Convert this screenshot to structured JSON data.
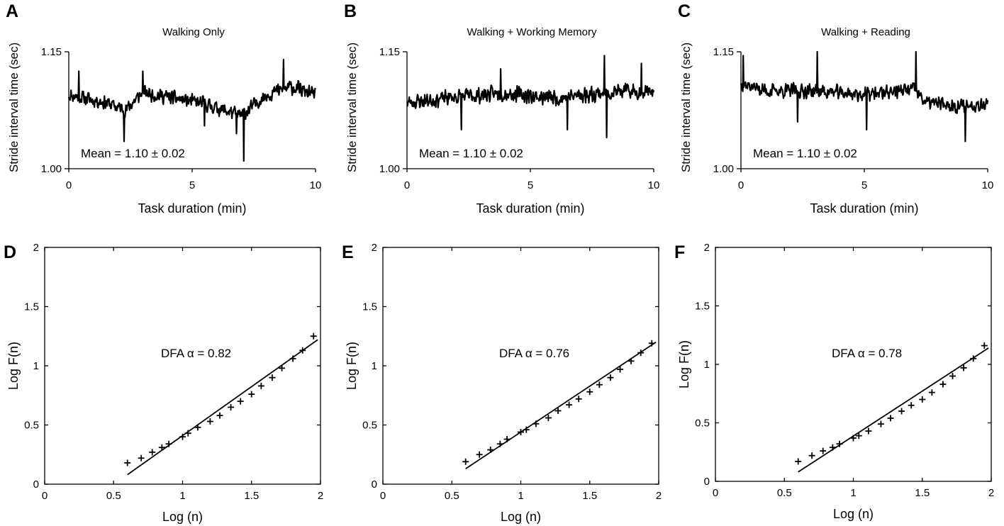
{
  "chart_data": [
    {
      "panel": "A",
      "type": "line",
      "title": "Walking Only",
      "xlabel": "Task duration (min)",
      "ylabel": "Stride interval time (sec)",
      "xlim": [
        0,
        10
      ],
      "ylim": [
        1.0,
        1.15
      ],
      "xticks": [
        "0",
        "5",
        "10"
      ],
      "yticks": [
        "1.00",
        "1.15"
      ],
      "annotation": "Mean = 1.10 ± 0.02",
      "seed": 11,
      "profile": [
        [
          0,
          1.095
        ],
        [
          1.5,
          1.085
        ],
        [
          2.3,
          1.075
        ],
        [
          3,
          1.098
        ],
        [
          4,
          1.092
        ],
        [
          5.5,
          1.083
        ],
        [
          7,
          1.068
        ],
        [
          8,
          1.095
        ],
        [
          9,
          1.105
        ],
        [
          10,
          1.095
        ]
      ],
      "noise": 0.011,
      "spikes": [
        [
          0.4,
          1.125
        ],
        [
          2.25,
          1.035
        ],
        [
          3,
          1.125
        ],
        [
          5.5,
          1.055
        ],
        [
          6.8,
          1.045
        ],
        [
          7.1,
          1.01
        ],
        [
          8.7,
          1.14
        ]
      ]
    },
    {
      "panel": "B",
      "type": "line",
      "title": "Walking + Working Memory",
      "xlabel": "Task duration (min)",
      "ylabel": "Stride interval time (sec)",
      "xlim": [
        0,
        10
      ],
      "ylim": [
        1.0,
        1.15
      ],
      "xticks": [
        "0",
        "5",
        "10"
      ],
      "yticks": [
        "1.00",
        "1.15"
      ],
      "annotation": "Mean = 1.10 ± 0.02",
      "seed": 23,
      "profile": [
        [
          0,
          1.085
        ],
        [
          2,
          1.092
        ],
        [
          4,
          1.097
        ],
        [
          6,
          1.09
        ],
        [
          8,
          1.098
        ],
        [
          10,
          1.1
        ]
      ],
      "noise": 0.012,
      "spikes": [
        [
          2.2,
          1.05
        ],
        [
          3.8,
          1.128
        ],
        [
          6.5,
          1.05
        ],
        [
          8,
          1.145
        ],
        [
          8.1,
          1.04
        ],
        [
          9.5,
          1.135
        ]
      ]
    },
    {
      "panel": "C",
      "type": "line",
      "title": "Walking + Reading",
      "xlabel": "Task duration (min)",
      "ylabel": "Stride interval time (sec)",
      "xlim": [
        0,
        10
      ],
      "ylim": [
        1.0,
        1.15
      ],
      "xticks": [
        "0",
        "5",
        "10"
      ],
      "yticks": [
        "1.00",
        "1.15"
      ],
      "annotation": "Mean = 1.10 ± 0.02",
      "seed": 37,
      "profile": [
        [
          0,
          1.11
        ],
        [
          1,
          1.1
        ],
        [
          3,
          1.1
        ],
        [
          5,
          1.095
        ],
        [
          7,
          1.102
        ],
        [
          7.5,
          1.085
        ],
        [
          9,
          1.08
        ],
        [
          10,
          1.085
        ]
      ],
      "noise": 0.011,
      "spikes": [
        [
          0.1,
          1.145
        ],
        [
          2.3,
          1.06
        ],
        [
          3.1,
          1.15
        ],
        [
          5.1,
          1.05
        ],
        [
          7.1,
          1.15
        ],
        [
          9.1,
          1.035
        ]
      ]
    },
    {
      "panel": "D",
      "type": "scatter",
      "xlabel": "Log (n)",
      "ylabel": "Log F(n)",
      "xlim": [
        0,
        2
      ],
      "ylim": [
        0,
        2
      ],
      "xticks": [
        "0",
        "0.5",
        "1",
        "1.5",
        "2"
      ],
      "yticks": [
        "0",
        "0.5",
        "1",
        "1.5",
        "2"
      ],
      "annotation": "DFA α = 0.82",
      "x": [
        0.6,
        0.7,
        0.78,
        0.85,
        0.9,
        1.0,
        1.04,
        1.11,
        1.2,
        1.27,
        1.35,
        1.42,
        1.5,
        1.57,
        1.65,
        1.72,
        1.8,
        1.87,
        1.95
      ],
      "y": [
        0.18,
        0.22,
        0.27,
        0.31,
        0.34,
        0.4,
        0.43,
        0.48,
        0.53,
        0.58,
        0.65,
        0.7,
        0.76,
        0.83,
        0.9,
        0.98,
        1.06,
        1.13,
        1.25
      ],
      "fit": [
        [
          0.6,
          0.08
        ],
        [
          1.98,
          1.22
        ]
      ]
    },
    {
      "panel": "E",
      "type": "scatter",
      "xlabel": "Log (n)",
      "ylabel": "Log F(n)",
      "xlim": [
        0,
        2
      ],
      "ylim": [
        0,
        2
      ],
      "xticks": [
        "0",
        "0.5",
        "1",
        "1.5",
        "2"
      ],
      "yticks": [
        "0",
        "0.5",
        "1",
        "1.5",
        "2"
      ],
      "annotation": "DFA α = 0.76",
      "x": [
        0.6,
        0.7,
        0.78,
        0.85,
        0.9,
        1.0,
        1.04,
        1.11,
        1.2,
        1.27,
        1.35,
        1.42,
        1.5,
        1.57,
        1.65,
        1.72,
        1.8,
        1.87,
        1.95
      ],
      "y": [
        0.19,
        0.25,
        0.29,
        0.34,
        0.38,
        0.44,
        0.46,
        0.51,
        0.56,
        0.62,
        0.67,
        0.72,
        0.78,
        0.84,
        0.9,
        0.97,
        1.04,
        1.11,
        1.19
      ],
      "fit": [
        [
          0.6,
          0.13
        ],
        [
          1.98,
          1.2
        ]
      ]
    },
    {
      "panel": "F",
      "type": "scatter",
      "xlabel": "Log (n)",
      "ylabel": "Log F(n)",
      "xlim": [
        0,
        2
      ],
      "ylim": [
        0,
        2
      ],
      "xticks": [
        "0",
        "0.5",
        "1",
        "1.5",
        "2"
      ],
      "yticks": [
        "0",
        "0.5",
        "1",
        "1.5",
        "2"
      ],
      "annotation": "DFA α = 0.78",
      "x": [
        0.6,
        0.7,
        0.78,
        0.85,
        0.9,
        1.0,
        1.04,
        1.11,
        1.2,
        1.27,
        1.35,
        1.42,
        1.5,
        1.57,
        1.65,
        1.72,
        1.8,
        1.87,
        1.95
      ],
      "y": [
        0.17,
        0.22,
        0.26,
        0.29,
        0.32,
        0.37,
        0.39,
        0.43,
        0.49,
        0.54,
        0.6,
        0.65,
        0.7,
        0.76,
        0.83,
        0.9,
        0.97,
        1.05,
        1.16
      ],
      "fit": [
        [
          0.6,
          0.08
        ],
        [
          1.98,
          1.14
        ]
      ]
    }
  ]
}
